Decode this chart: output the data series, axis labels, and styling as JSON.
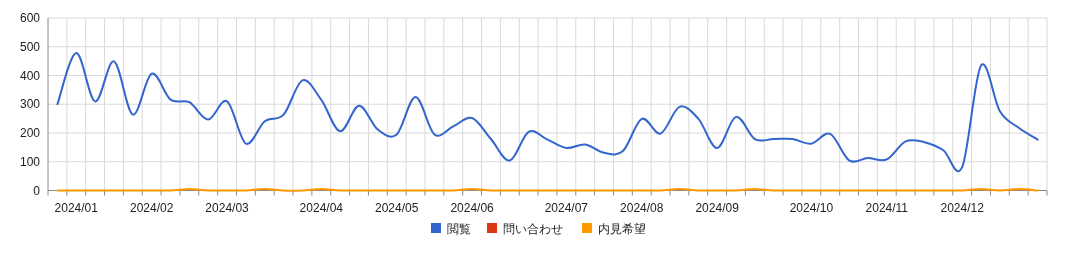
{
  "chart_data": {
    "type": "line",
    "categories": [
      null,
      "2024/01",
      null,
      null,
      null,
      "2024/02",
      null,
      null,
      null,
      "2024/03",
      null,
      null,
      null,
      null,
      "2024/04",
      null,
      null,
      null,
      "2024/05",
      null,
      null,
      null,
      "2024/06",
      null,
      null,
      null,
      null,
      "2024/07",
      null,
      null,
      null,
      "2024/08",
      null,
      null,
      null,
      "2024/09",
      null,
      null,
      null,
      null,
      "2024/10",
      null,
      null,
      null,
      "2024/11",
      null,
      null,
      null,
      "2024/12",
      null,
      null,
      null,
      null
    ],
    "series": [
      {
        "name": "閲覧",
        "color": "#3366cc",
        "values": [
          300,
          478,
          310,
          449,
          264,
          406,
          316,
          307,
          247,
          310,
          163,
          241,
          264,
          383,
          315,
          206,
          295,
          212,
          195,
          325,
          195,
          223,
          252,
          179,
          104,
          204,
          177,
          148,
          160,
          131,
          137,
          249,
          198,
          291,
          250,
          148,
          256,
          179,
          179,
          179,
          163,
          197,
          105,
          113,
          108,
          171,
          168,
          140,
          81,
          435,
          276,
          218,
          177
        ]
      },
      {
        "name": "問い合わせ",
        "color": "#dc3912",
        "values": [
          null,
          null,
          null,
          null,
          null,
          null,
          null,
          null,
          null,
          null,
          null,
          null,
          null,
          null,
          null,
          null,
          null,
          null,
          null,
          null,
          null,
          null,
          null,
          null,
          null,
          null,
          null,
          null,
          null,
          null,
          null,
          null,
          null,
          null,
          null,
          null,
          null,
          null,
          null,
          null,
          null,
          null,
          null,
          null,
          null,
          null,
          null,
          null,
          null,
          null,
          null,
          null,
          null
        ]
      },
      {
        "name": "内見希望",
        "color": "#ff9900",
        "values": [
          0,
          0,
          0,
          0,
          0,
          0,
          0,
          5,
          0,
          0,
          0,
          5,
          0,
          0,
          5,
          0,
          0,
          0,
          0,
          0,
          0,
          0,
          5,
          0,
          0,
          0,
          0,
          0,
          0,
          0,
          0,
          0,
          0,
          5,
          0,
          0,
          0,
          5,
          0,
          0,
          0,
          0,
          0,
          0,
          0,
          0,
          0,
          0,
          0,
          5,
          0,
          5,
          0
        ]
      }
    ],
    "ylim": [
      0,
      600
    ],
    "yticks": [
      0,
      100,
      200,
      300,
      400,
      500,
      600
    ],
    "grid": true,
    "legend": "bottom"
  }
}
